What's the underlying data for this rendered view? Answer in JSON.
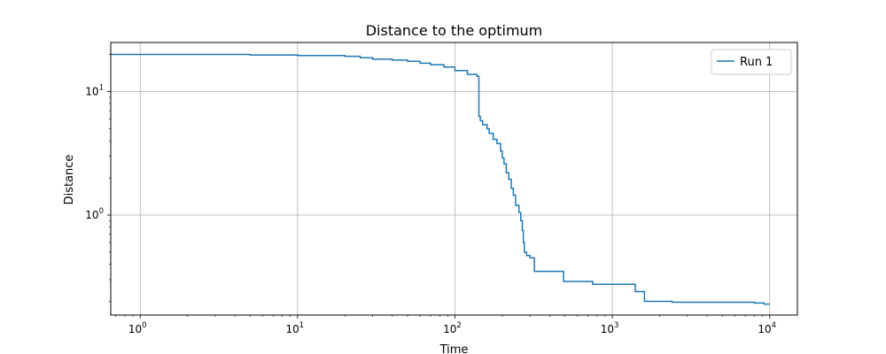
{
  "chart_data": {
    "type": "line",
    "title": "Distance to the optimum",
    "xlabel": "Time",
    "ylabel": "Distance",
    "xscale": "log",
    "yscale": "log",
    "xlim": [
      0.65,
      15000
    ],
    "ylim": [
      0.155,
      25
    ],
    "xticks": [
      {
        "value": 1,
        "base": "10",
        "exp": "0"
      },
      {
        "value": 10,
        "base": "10",
        "exp": "1"
      },
      {
        "value": 100,
        "base": "10",
        "exp": "2"
      },
      {
        "value": 1000,
        "base": "10",
        "exp": "3"
      },
      {
        "value": 10000,
        "base": "10",
        "exp": "4"
      }
    ],
    "yticks": [
      {
        "value": 1,
        "base": "10",
        "exp": "0"
      },
      {
        "value": 10,
        "base": "10",
        "exp": "1"
      }
    ],
    "grid": true,
    "legend_position": "top-right",
    "color": "#1f77b4",
    "series": [
      {
        "name": "Run 1",
        "step": true,
        "points": [
          [
            0.65,
            20.0
          ],
          [
            5,
            19.8
          ],
          [
            10,
            19.6
          ],
          [
            20,
            19.3
          ],
          [
            25,
            18.8
          ],
          [
            30,
            18.3
          ],
          [
            40,
            18.0
          ],
          [
            50,
            17.6
          ],
          [
            60,
            17.0
          ],
          [
            70,
            16.5
          ],
          [
            85,
            15.8
          ],
          [
            100,
            14.8
          ],
          [
            120,
            13.8
          ],
          [
            138,
            13.3
          ],
          [
            142,
            6.3
          ],
          [
            145,
            5.8
          ],
          [
            150,
            5.4
          ],
          [
            160,
            5.0
          ],
          [
            165,
            4.6
          ],
          [
            175,
            4.1
          ],
          [
            185,
            3.8
          ],
          [
            195,
            3.3
          ],
          [
            200,
            2.9
          ],
          [
            205,
            2.6
          ],
          [
            212,
            2.2
          ],
          [
            220,
            1.95
          ],
          [
            228,
            1.65
          ],
          [
            235,
            1.45
          ],
          [
            243,
            1.2
          ],
          [
            255,
            1.05
          ],
          [
            262,
            0.9
          ],
          [
            268,
            0.75
          ],
          [
            272,
            0.6
          ],
          [
            276,
            0.5
          ],
          [
            285,
            0.47
          ],
          [
            300,
            0.45
          ],
          [
            320,
            0.35
          ],
          [
            490,
            0.29
          ],
          [
            750,
            0.275
          ],
          [
            1400,
            0.24
          ],
          [
            1600,
            0.2
          ],
          [
            2400,
            0.197
          ],
          [
            8000,
            0.194
          ],
          [
            9200,
            0.19
          ],
          [
            10000,
            0.19
          ]
        ]
      }
    ]
  }
}
